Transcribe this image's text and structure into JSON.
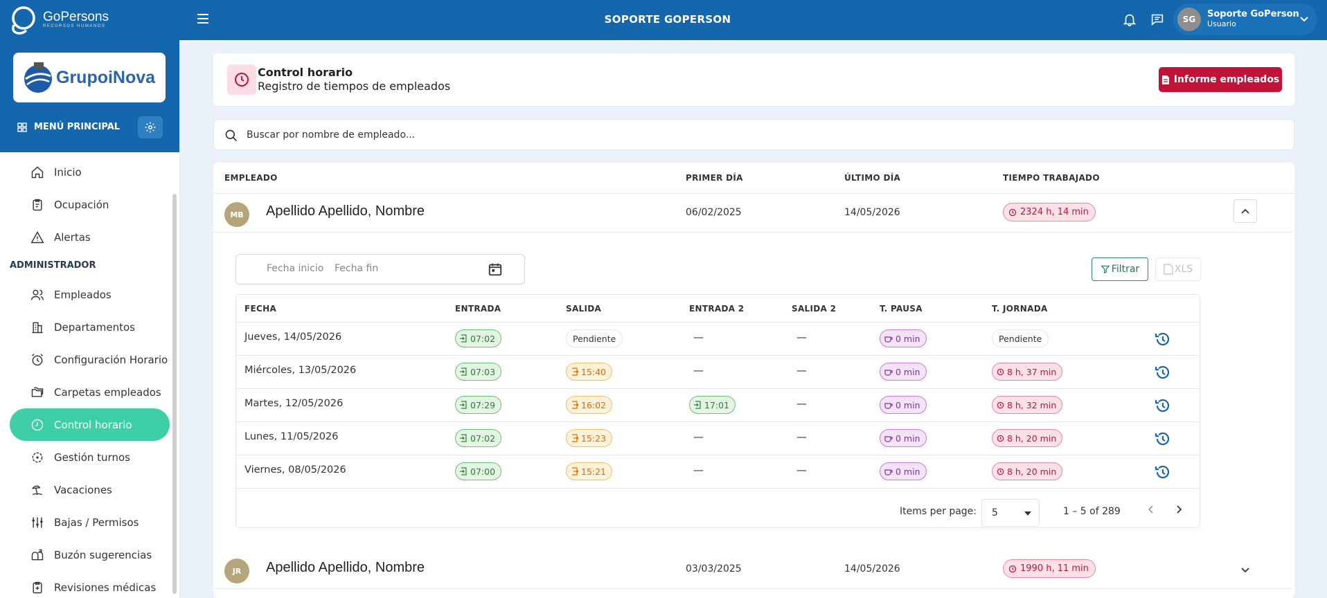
{
  "topbar": {
    "brand_name": "GoPersons",
    "brand_sub": "RECURSOS HUMANOS",
    "title": "SOPORTE GOPERSON",
    "user": {
      "initials": "SG",
      "name": "Soporte GoPerson",
      "role": "Usuario"
    }
  },
  "sidebar": {
    "company": "GrupoiNova",
    "menu_label": "MENÚ PRINCIPAL",
    "items_top": [
      {
        "label": "Inicio",
        "icon": "home-icon"
      },
      {
        "label": "Ocupación",
        "icon": "clipboard-icon"
      },
      {
        "label": "Alertas",
        "icon": "alert-triangle-icon"
      }
    ],
    "section": "ADMINISTRADOR",
    "items_admin": [
      {
        "label": "Empleados",
        "icon": "users-icon"
      },
      {
        "label": "Departamentos",
        "icon": "building-icon"
      },
      {
        "label": "Configuración Horario",
        "icon": "alarm-clock-icon"
      },
      {
        "label": "Carpetas empleados",
        "icon": "folders-icon"
      },
      {
        "label": "Control horario",
        "icon": "clock-icon",
        "active": true
      },
      {
        "label": "Gestión turnos",
        "icon": "rotate-icon"
      },
      {
        "label": "Vacaciones",
        "icon": "beach-icon"
      },
      {
        "label": "Bajas / Permisos",
        "icon": "sliders-icon"
      },
      {
        "label": "Buzón sugerencias",
        "icon": "mailbox-icon"
      },
      {
        "label": "Revisiones médicas",
        "icon": "medical-clipboard-icon"
      }
    ]
  },
  "header": {
    "title": "Control horario",
    "subtitle": "Registro de tiempos de empleados",
    "report_button": "Informe empleados"
  },
  "search": {
    "placeholder": "Buscar por nombre de empleado..."
  },
  "table": {
    "columns": [
      "EMPLEADO",
      "PRIMER DÍA",
      "ÚLTIMO DÍA",
      "TIEMPO TRABAJADO"
    ],
    "employees": [
      {
        "initials": "MB",
        "name": "Apellido Apellido, Nombre",
        "first_day": "06/02/2025",
        "last_day": "14/05/2026",
        "total": "2324 h, 14 min",
        "expanded": true
      },
      {
        "initials": "JR",
        "name": "Apellido Apellido, Nombre",
        "first_day": "03/03/2025",
        "last_day": "14/05/2026",
        "total": "1990 h, 11 min",
        "expanded": false
      }
    ]
  },
  "detail": {
    "date_start_placeholder": "Fecha inicio",
    "date_end_placeholder": "Fecha fin",
    "filter_button": "Filtrar",
    "xls_button": "XLS",
    "columns": [
      "FECHA",
      "ENTRADA",
      "SALIDA",
      "ENTRADA 2",
      "SALIDA 2",
      "T. PAUSA",
      "T. JORNADA"
    ],
    "rows": [
      {
        "fecha": "Jueves, 14/05/2026",
        "entrada": "07:02",
        "salida": "Pendiente",
        "entrada2": "—",
        "salida2": "—",
        "pausa": "0 min",
        "jornada": "Pendiente"
      },
      {
        "fecha": "Miércoles, 13/05/2026",
        "entrada": "07:03",
        "salida": "15:40",
        "entrada2": "—",
        "salida2": "—",
        "pausa": "0 min",
        "jornada": "8 h, 37 min"
      },
      {
        "fecha": "Martes, 12/05/2026",
        "entrada": "07:29",
        "salida": "16:02",
        "entrada2": "17:01",
        "salida2": "—",
        "pausa": "0 min",
        "jornada": "8 h, 32 min"
      },
      {
        "fecha": "Lunes, 11/05/2026",
        "entrada": "07:02",
        "salida": "15:23",
        "entrada2": "—",
        "salida2": "—",
        "pausa": "0 min",
        "jornada": "8 h, 20 min"
      },
      {
        "fecha": "Viernes, 08/05/2026",
        "entrada": "07:00",
        "salida": "15:21",
        "entrada2": "—",
        "salida2": "—",
        "pausa": "0 min",
        "jornada": "8 h, 20 min"
      }
    ],
    "pager": {
      "label": "Items per page:",
      "page_size": "5",
      "range": "1 – 5 of 289"
    }
  },
  "colors": {
    "primary": "#1466ad",
    "active": "#3fcfa7",
    "danger": "#c0133a"
  }
}
